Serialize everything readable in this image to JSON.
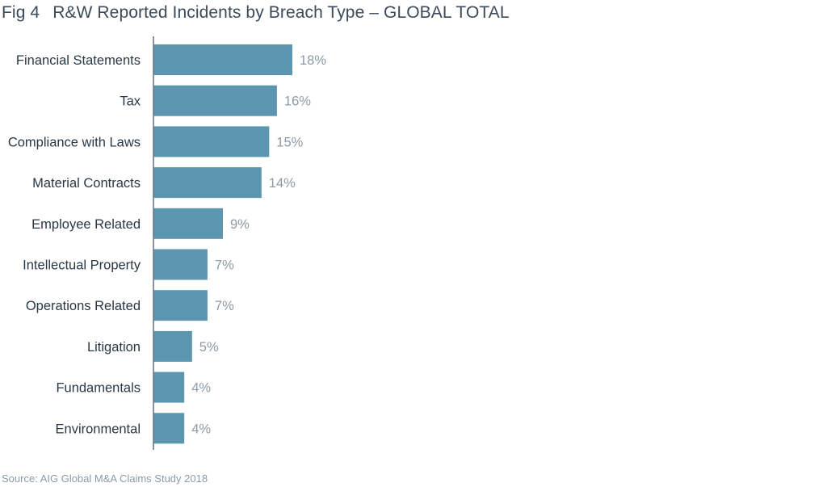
{
  "figure_number": "Fig 4",
  "source": "Source: AIG Global M&A Claims Study 2018",
  "colors": {
    "bar": "#5b95b0",
    "category_text": "#2a3745",
    "value_text": "#8e9aa5",
    "axis": "#6d7a86",
    "title_text": "#3c4a5a"
  },
  "chart_data": {
    "type": "bar",
    "orientation": "horizontal",
    "title": "R&W Reported Incidents by Breach Type – GLOBAL TOTAL",
    "categories": [
      "Financial Statements",
      "Tax",
      "Compliance with Laws",
      "Material Contracts",
      "Employee Related",
      "Intellectual Property",
      "Operations Related",
      "Litigation",
      "Fundamentals",
      "Environmental"
    ],
    "values": [
      18,
      16,
      15,
      14,
      9,
      7,
      7,
      5,
      4,
      4
    ],
    "value_labels": [
      "18%",
      "16%",
      "15%",
      "14%",
      "9%",
      "7%",
      "7%",
      "5%",
      "4%",
      "4%"
    ],
    "unit": "%",
    "xlim": [
      0,
      100
    ],
    "xlabel": "",
    "ylabel": "",
    "grid": false,
    "legend": "none"
  }
}
